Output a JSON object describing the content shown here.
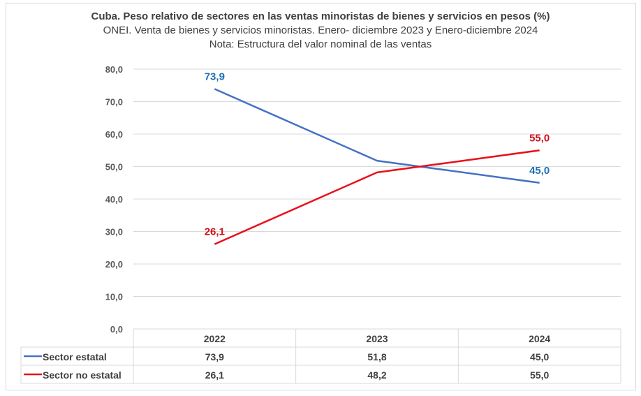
{
  "chart_data": {
    "type": "line",
    "title": "Cuba. Peso relativo de sectores en las ventas minoristas de bienes y servicios en pesos (%)",
    "subtitle": "ONEI. Venta de bienes y servicios minoristas. Enero- diciembre 2023 y Enero-diciembre 2024",
    "note": "Nota: Estructura del valor nominal de las ventas",
    "categories": [
      "2022",
      "2023",
      "2024"
    ],
    "series": [
      {
        "name": "Sector estatal",
        "color": "#4472C4",
        "label_color": "#1F6FB5",
        "values": [
          73.9,
          51.8,
          45.0
        ],
        "display": [
          "73,9",
          "51,8",
          "45,0"
        ],
        "labeled": [
          true,
          false,
          true
        ]
      },
      {
        "name": "Sector no estatal",
        "color": "#E8101A",
        "label_color": "#D0101A",
        "values": [
          26.1,
          48.2,
          55.0
        ],
        "display": [
          "26,1",
          "48,2",
          "55,0"
        ],
        "labeled": [
          true,
          false,
          true
        ]
      }
    ],
    "yticks": [
      "0,0",
      "10,0",
      "20,0",
      "30,0",
      "40,0",
      "50,0",
      "60,0",
      "70,0",
      "80,0"
    ],
    "ylim": [
      0,
      80
    ],
    "ystep": 10,
    "grid": true,
    "legend": "data-table-below"
  }
}
